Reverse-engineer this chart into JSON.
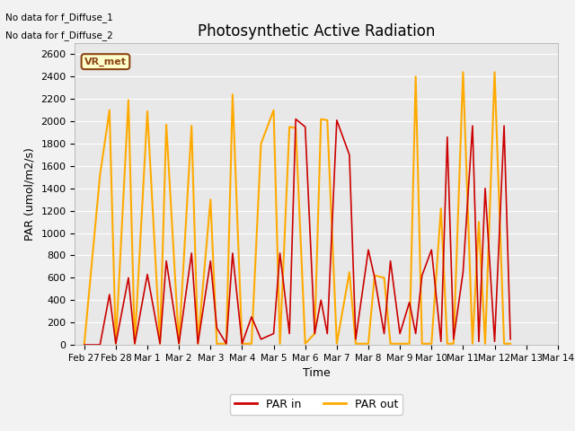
{
  "title": "Photosynthetic Active Radiation",
  "xlabel": "Time",
  "ylabel": "PAR (umol/m2/s)",
  "annotation_lines": [
    "No data for f_Diffuse_1",
    "No data for f_Diffuse_2"
  ],
  "legend_label": "VR_met",
  "legend_bg": "#ffffcc",
  "legend_border": "#8B4513",
  "x_labels": [
    "Feb 27",
    "Feb 28",
    "Mar 1",
    "Mar 2",
    "Mar 3",
    "Mar 4",
    "Mar 5",
    "Mar 6",
    "Mar 7",
    "Mar 8",
    "Mar 9",
    "Mar 10",
    "Mar 11",
    "Mar 12",
    "Mar 13",
    "Mar 14"
  ],
  "ylim": [
    0,
    2700
  ],
  "yticks": [
    0,
    200,
    400,
    600,
    800,
    1000,
    1200,
    1400,
    1600,
    1800,
    2000,
    2200,
    2400,
    2600
  ],
  "par_in_color": "#cc0000",
  "par_out_color": "#ffaa00",
  "par_in_label": "PAR in",
  "par_out_label": "PAR out",
  "plot_bg_color": "#e8e8e8",
  "fig_bg_color": "#f2f2f2",
  "grid_color": "#ffffff",
  "par_in_x": [
    0.0,
    0.5,
    0.8,
    1.0,
    1.4,
    1.6,
    2.0,
    2.4,
    2.6,
    3.0,
    3.4,
    3.6,
    4.0,
    4.2,
    4.5,
    4.7,
    5.0,
    5.3,
    5.6,
    6.0,
    6.2,
    6.5,
    6.7,
    7.0,
    7.3,
    7.5,
    7.7,
    8.0,
    8.4,
    8.6,
    9.0,
    9.2,
    9.5,
    9.7,
    10.0,
    10.3,
    10.5,
    10.7,
    11.0,
    11.3,
    11.5,
    11.7,
    12.0,
    12.3,
    12.5,
    12.7,
    13.0,
    13.3,
    13.5
  ],
  "par_in_y": [
    0,
    0,
    450,
    10,
    600,
    10,
    630,
    10,
    750,
    10,
    820,
    10,
    750,
    150,
    10,
    820,
    10,
    250,
    50,
    100,
    820,
    100,
    2020,
    1950,
    100,
    400,
    100,
    2010,
    1700,
    50,
    850,
    600,
    100,
    750,
    100,
    380,
    100,
    620,
    850,
    30,
    1860,
    50,
    650,
    1960,
    30,
    1400,
    30,
    1960,
    50
  ],
  "par_out_x": [
    0.0,
    0.5,
    0.8,
    1.0,
    1.4,
    1.6,
    2.0,
    2.4,
    2.6,
    3.0,
    3.4,
    3.6,
    4.0,
    4.2,
    4.5,
    4.7,
    5.0,
    5.3,
    5.6,
    6.0,
    6.2,
    6.5,
    6.7,
    7.0,
    7.3,
    7.5,
    7.7,
    8.0,
    8.4,
    8.6,
    9.0,
    9.2,
    9.5,
    9.7,
    10.0,
    10.3,
    10.5,
    10.7,
    11.0,
    11.3,
    11.5,
    11.7,
    12.0,
    12.3,
    12.5,
    12.7,
    13.0,
    13.3,
    13.5
  ],
  "par_out_y": [
    0,
    1520,
    2100,
    10,
    2190,
    10,
    2090,
    10,
    1970,
    10,
    1960,
    10,
    1300,
    10,
    10,
    2240,
    10,
    10,
    1800,
    2100,
    10,
    1950,
    1940,
    10,
    100,
    2020,
    2010,
    10,
    650,
    10,
    10,
    620,
    600,
    10,
    10,
    10,
    2400,
    10,
    10,
    1220,
    10,
    10,
    2440,
    10,
    1100,
    10,
    2440,
    10,
    10
  ]
}
